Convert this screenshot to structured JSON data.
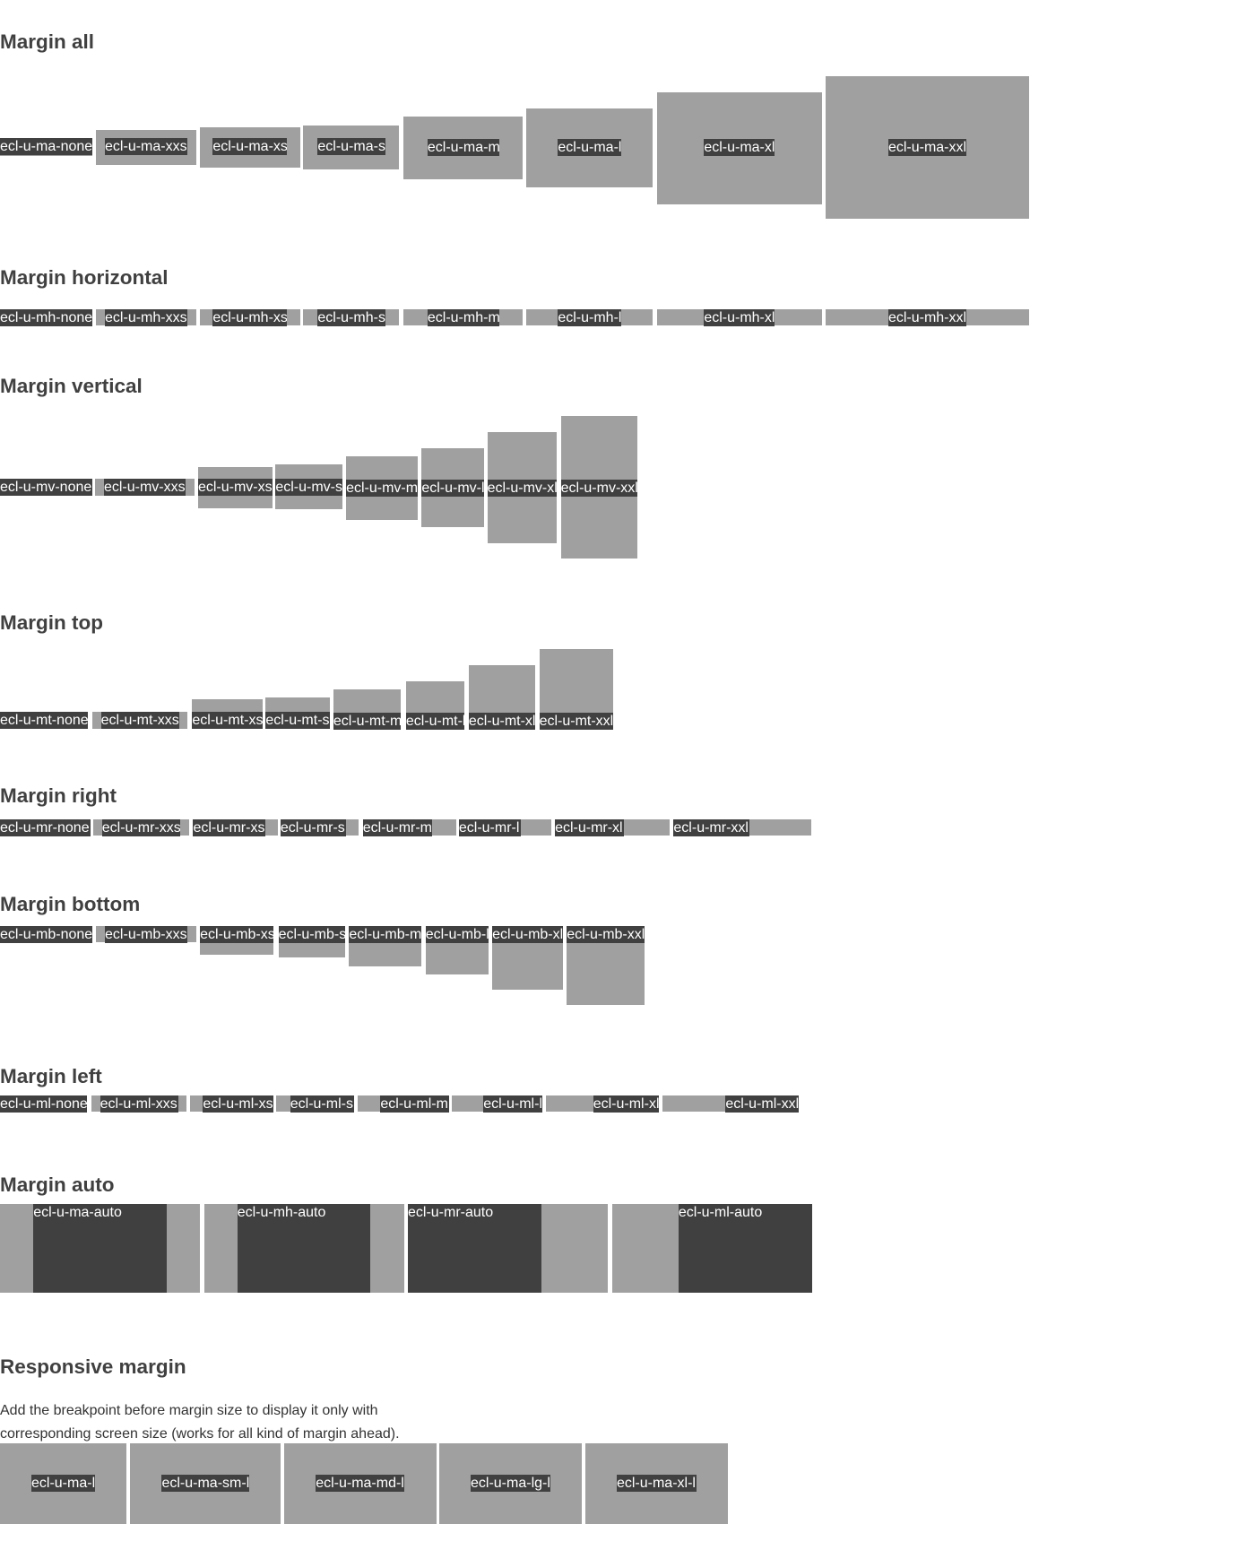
{
  "sections": {
    "margin_all": {
      "title": "Margin all",
      "items": [
        "ecl-u-ma-none",
        "ecl-u-ma-xxs",
        "ecl-u-ma-xs",
        "ecl-u-ma-s",
        "ecl-u-ma-m",
        "ecl-u-ma-l",
        "ecl-u-ma-xl",
        "ecl-u-ma-xxl"
      ]
    },
    "margin_horizontal": {
      "title": "Margin horizontal",
      "items": [
        "ecl-u-mh-none",
        "ecl-u-mh-xxs",
        "ecl-u-mh-xs",
        "ecl-u-mh-s",
        "ecl-u-mh-m",
        "ecl-u-mh-l",
        "ecl-u-mh-xl",
        "ecl-u-mh-xxl"
      ]
    },
    "margin_vertical": {
      "title": "Margin vertical",
      "items": [
        "ecl-u-mv-none",
        "ecl-u-mv-xxs",
        "ecl-u-mv-xs",
        "ecl-u-mv-s",
        "ecl-u-mv-m",
        "ecl-u-mv-l",
        "ecl-u-mv-xl",
        "ecl-u-mv-xxl"
      ]
    },
    "margin_top": {
      "title": "Margin top",
      "items": [
        "ecl-u-mt-none",
        "ecl-u-mt-xxs",
        "ecl-u-mt-xs",
        "ecl-u-mt-s",
        "ecl-u-mt-m",
        "ecl-u-mt-l",
        "ecl-u-mt-xl",
        "ecl-u-mt-xxl"
      ]
    },
    "margin_right": {
      "title": "Margin right",
      "items": [
        "ecl-u-mr-none",
        "ecl-u-mr-xxs",
        "ecl-u-mr-xs",
        "ecl-u-mr-s",
        "ecl-u-mr-m",
        "ecl-u-mr-l",
        "ecl-u-mr-xl",
        "ecl-u-mr-xxl"
      ]
    },
    "margin_bottom": {
      "title": "Margin bottom",
      "items": [
        "ecl-u-mb-none",
        "ecl-u-mb-xxs",
        "ecl-u-mb-xs",
        "ecl-u-mb-s",
        "ecl-u-mb-m",
        "ecl-u-mb-l",
        "ecl-u-mb-xl",
        "ecl-u-mb-xxl"
      ]
    },
    "margin_left": {
      "title": "Margin left",
      "items": [
        "ecl-u-ml-none",
        "ecl-u-ml-xxs",
        "ecl-u-ml-xs",
        "ecl-u-ml-s",
        "ecl-u-ml-m",
        "ecl-u-ml-l",
        "ecl-u-ml-xl",
        "ecl-u-ml-xxl"
      ]
    },
    "margin_auto": {
      "title": "Margin auto",
      "items": [
        "ecl-u-ma-auto",
        "ecl-u-mh-auto",
        "ecl-u-mr-auto",
        "ecl-u-ml-auto"
      ]
    },
    "responsive_margin": {
      "title": "Responsive margin",
      "description": "Add the breakpoint before margin size to display it only with corresponding screen size (works for all kind of margin ahead).",
      "items": [
        "ecl-u-ma-l",
        "ecl-u-ma-sm-l",
        "ecl-u-ma-md-l",
        "ecl-u-ma-lg-l",
        "ecl-u-ma-xl-l"
      ]
    }
  },
  "colors": {
    "box": "#a0a0a0",
    "label_bg": "#404040",
    "label_text": "#ffffff",
    "heading": "#404040"
  }
}
